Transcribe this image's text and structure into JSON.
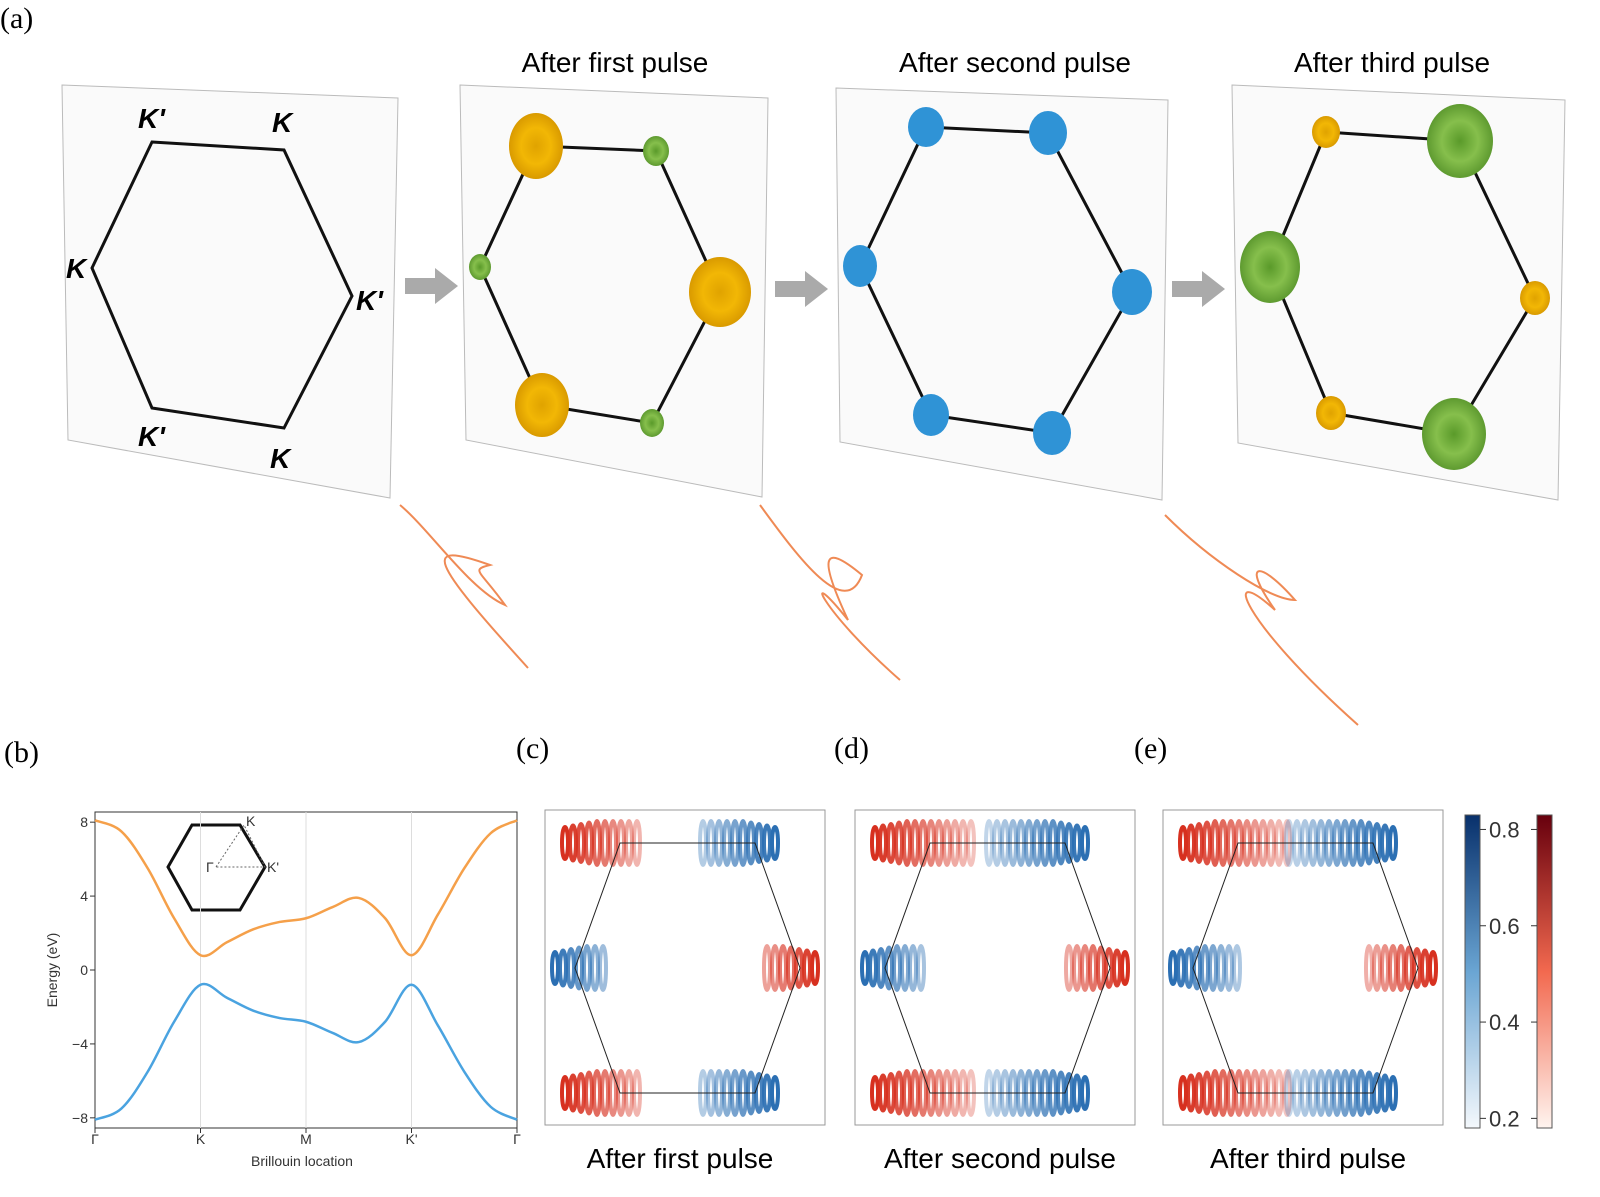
{
  "panel_labels": [
    "(a)",
    "(b)",
    "(c)",
    "(d)",
    "(e)"
  ],
  "panel_a": {
    "titles": [
      "After first pulse",
      "After second pulse",
      "After third pulse"
    ],
    "vertex_labels": [
      "K'",
      "K",
      "K",
      "K'",
      "K'",
      "K"
    ]
  },
  "panels_cde": {
    "captions": [
      "After first pulse",
      "After second pulse",
      "After third pulse"
    ],
    "colorbar": {
      "lim": [
        0.18,
        0.83
      ],
      "ticks": [
        0.8,
        0.6,
        0.4,
        0.2
      ]
    }
  },
  "chart_data": {
    "type": "line",
    "xlabel": "Brillouin location",
    "ylabel": "Energy (eV)",
    "inset_labels": [
      "K",
      "Γ",
      "K'"
    ],
    "x": [
      0,
      0.25,
      0.5,
      0.75,
      1,
      1.25,
      1.5,
      1.75,
      2,
      2.25,
      2.5,
      2.75,
      3,
      3.25,
      3.5,
      3.75,
      4
    ],
    "series": [
      {
        "color": "#f5a04a",
        "values": [
          8.1,
          7.5,
          5.5,
          2.8,
          0.8,
          1.5,
          2.2,
          2.6,
          2.8,
          3.4,
          3.9,
          2.8,
          0.8,
          3.0,
          5.5,
          7.4,
          8.1
        ]
      },
      {
        "color": "#4aa3e0",
        "values": [
          -8.1,
          -7.5,
          -5.5,
          -2.8,
          -0.8,
          -1.5,
          -2.2,
          -2.6,
          -2.8,
          -3.4,
          -3.9,
          -2.8,
          -0.8,
          -3.0,
          -5.5,
          -7.4,
          -8.1
        ]
      }
    ],
    "xlim": [
      0,
      4
    ],
    "xticks": [
      {
        "value": 0,
        "label": "Γ"
      },
      {
        "value": 1,
        "label": "K"
      },
      {
        "value": 2,
        "label": "M"
      },
      {
        "value": 3,
        "label": "K'"
      },
      {
        "value": 4,
        "label": "Γ"
      }
    ],
    "ylim": [
      -8.55,
      8.55
    ],
    "yticks": [
      8,
      4,
      0,
      {
        "value": -4,
        "label": "−4"
      },
      {
        "value": -8,
        "label": "−8"
      }
    ],
    "grid": "x"
  }
}
